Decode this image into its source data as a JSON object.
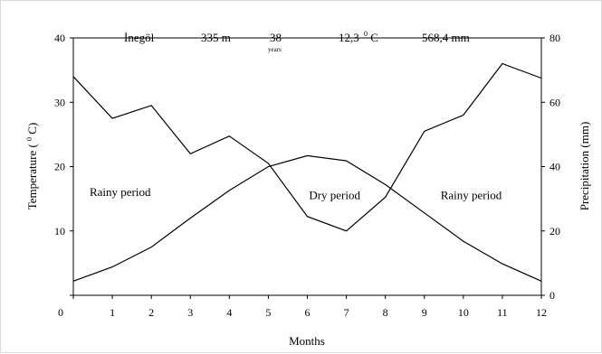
{
  "chart_data": {
    "type": "line",
    "header": {
      "station": "İnegöl",
      "altitude": "335 m",
      "years_value": "38",
      "years_unit": "years",
      "mean_temp_value": "12,3",
      "mean_temp_unit_sup": "0",
      "mean_temp_unit": "C",
      "annual_precip": "568,4 mm"
    },
    "xlabel": "Months",
    "ylabel_left_prefix": "Temperature (",
    "ylabel_left_sup": "0",
    "ylabel_left_suffix": "C)",
    "ylabel_right": "Precipitation (mm)",
    "x_ticks": [
      "0",
      "1",
      "2",
      "3",
      "4",
      "5",
      "6",
      "7",
      "8",
      "9",
      "10",
      "11",
      "12"
    ],
    "x": [
      0,
      1,
      2,
      3,
      4,
      5,
      6,
      7,
      8,
      9,
      10,
      11,
      12
    ],
    "xlim": [
      0,
      12
    ],
    "ylim_left": [
      0,
      40
    ],
    "ylim_right": [
      0,
      80
    ],
    "y_ticks_left": [
      "0",
      "10",
      "20",
      "30",
      "40"
    ],
    "y_ticks_right": [
      "0",
      "20",
      "40",
      "60",
      "80"
    ],
    "series": [
      {
        "axis": "left",
        "values": [
          2.2,
          4.4,
          7.5,
          12.0,
          16.3,
          20.0,
          21.7,
          20.9,
          17.2,
          12.8,
          8.4,
          4.9,
          2.2
        ]
      },
      {
        "axis": "right",
        "values": [
          68,
          55,
          59,
          44,
          49.5,
          41,
          24.5,
          20,
          30.5,
          51,
          56,
          72,
          67.5
        ]
      }
    ],
    "annotations": [
      {
        "text": "Rainy period",
        "x": 1.2,
        "y": 16
      },
      {
        "text": "Dry period",
        "x": 6.7,
        "y": 15.5
      },
      {
        "text": "Rainy period",
        "x": 10.2,
        "y": 15.5
      }
    ],
    "grid": false,
    "legend": "none"
  }
}
